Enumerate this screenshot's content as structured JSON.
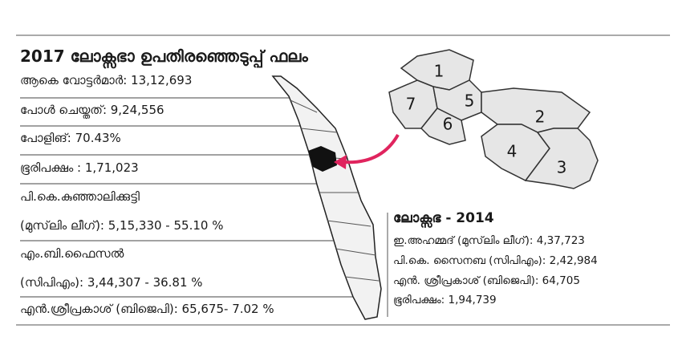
{
  "title": "2017 ലോക്സഭാ ഉപതിരഞ്ഞെടുപ്പ് ഫലം",
  "results": [
    "ആകെ വോട്ടർമാർ: 13,12,693",
    "പോൾ ചെയ്തത്: 9,24,556",
    "പോളിങ്: 70.43%",
    "ഭൂരിപക്ഷം : 1,71,023",
    "പി.കെ.കുഞ്ഞാലിക്കുട്ടി",
    "(മുസ്‌ലിം ലീഗ്): 5,15,330 -  55.10 %",
    "എം.ബി.ഫൈസൽ",
    "(സിപിഎം): 3,44,307 - 36.81 %",
    "എൻ.ശ്രീപ്രകാശ് (ബിജെപി):  65,675- 7.02 %"
  ],
  "map": {
    "labels": [
      "1",
      "2",
      "3",
      "4",
      "5",
      "6",
      "7"
    ]
  },
  "lok_sabha_2014": {
    "title": "ലോക്സഭ - 2014",
    "lines": [
      "ഇ.അഹമ്മദ് (മുസ്‌ലിം ലീഗ്): 4,37,723",
      "പി.കെ. സൈനബ (സിപിഎം): 2,42,984",
      "എൻ. ശ്രീപ്രകാശ് (ബിജെപി): 64,705",
      "ഭൂരിപക്ഷം: 1,94,739"
    ]
  }
}
